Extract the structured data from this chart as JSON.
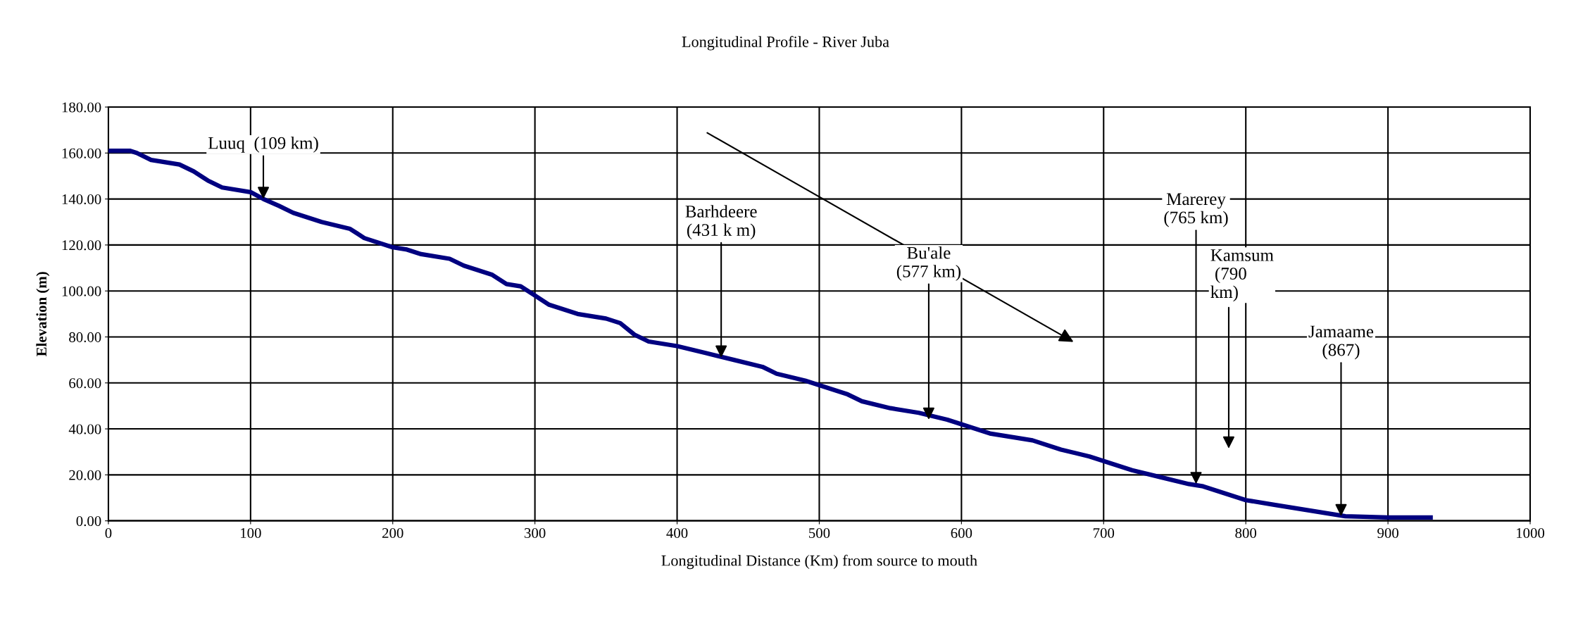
{
  "chart_data": {
    "type": "line",
    "title": "Longitudinal Profile - River Juba",
    "xlabel": "Longitudinal Distance (Km) from source to mouth",
    "ylabel": "Elevation (m)",
    "x": [
      0,
      15,
      20,
      30,
      50,
      60,
      70,
      80,
      100,
      109,
      120,
      130,
      150,
      170,
      180,
      200,
      210,
      220,
      240,
      250,
      270,
      280,
      290,
      300,
      310,
      330,
      350,
      360,
      370,
      380,
      400,
      420,
      440,
      460,
      470,
      490,
      500,
      520,
      530,
      550,
      570,
      590,
      600,
      620,
      650,
      670,
      690,
      700,
      720,
      740,
      760,
      770,
      780,
      800,
      820,
      840,
      860,
      870,
      900,
      930
    ],
    "series": [
      {
        "color": "#000080",
        "values": [
          161,
          161,
          160,
          157,
          155,
          152,
          148,
          145,
          143,
          140,
          137,
          134,
          130,
          127,
          123,
          119,
          118,
          116,
          114,
          111,
          107,
          103,
          102,
          98,
          94,
          90,
          88,
          86,
          81,
          78,
          76,
          73,
          70,
          67,
          64,
          61,
          59,
          55,
          52,
          49,
          47,
          44,
          42,
          38,
          35,
          31,
          28,
          26,
          22,
          19,
          16,
          15,
          13,
          9,
          7,
          5,
          3,
          2,
          1.5,
          1.5
        ]
      }
    ],
    "xlim": [
      0,
      1000
    ],
    "xticks": [
      0,
      100,
      200,
      300,
      400,
      500,
      600,
      700,
      800,
      900,
      1000
    ],
    "ylim": [
      0,
      180
    ],
    "yticks": [
      {
        "value": 0,
        "label": "0.00"
      },
      {
        "value": 20,
        "label": "20.00"
      },
      {
        "value": 40,
        "label": "40.00"
      },
      {
        "value": 60,
        "label": "60.00"
      },
      {
        "value": 80,
        "label": "80.00"
      },
      {
        "value": 100,
        "label": "100.00"
      },
      {
        "value": 120,
        "label": "120.00"
      },
      {
        "value": 140,
        "label": "140.00"
      },
      {
        "value": 160,
        "label": "160.00"
      },
      {
        "value": 180,
        "label": "180.00"
      }
    ],
    "grid": true,
    "marker": "none",
    "line_style": "solid",
    "annotations": [
      {
        "text": "Luuq  (109 km)",
        "x": 109,
        "y": 140
      },
      {
        "text": "Barhdeere\n(431 k m)",
        "x": 431,
        "y": 71
      },
      {
        "text": "Bu'ale\n(577 km)",
        "x": 577,
        "y": 44
      },
      {
        "text": "Marerey\n(765 km)",
        "x": 765,
        "y": 16
      },
      "Kamsum\n (790\nkm)",
      {
        "text": "Jamaame\n(867)",
        "x": 867,
        "y": 2
      }
    ]
  }
}
